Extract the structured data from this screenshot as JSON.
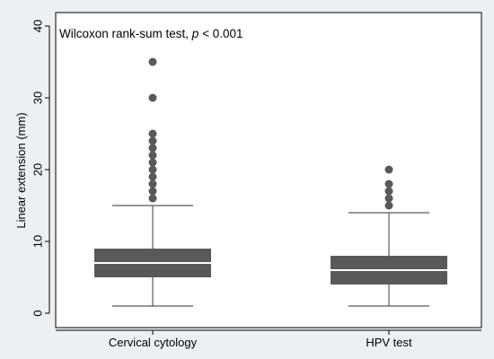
{
  "chart_data": {
    "type": "box",
    "title": "",
    "annotation": {
      "text_main": "Wilcoxon rank-sum test, ",
      "text_italic": "p",
      "text_tail": " < 0.001"
    },
    "xlabel": "",
    "ylabel": "Linear extension (mm)",
    "ylim": [
      0,
      40
    ],
    "yticks": [
      0,
      10,
      20,
      30,
      40
    ],
    "grid": false,
    "categories": [
      "Cervical cytology",
      "HPV test"
    ],
    "boxes": [
      {
        "category": "Cervical cytology",
        "whisker_low": 1,
        "q1": 5,
        "median": 7,
        "q3": 9,
        "whisker_high": 15,
        "outliers": [
          16,
          17,
          18,
          19,
          20,
          21,
          22,
          23,
          24,
          25,
          30,
          35
        ]
      },
      {
        "category": "HPV test",
        "whisker_low": 1,
        "q1": 4,
        "median": 6,
        "q3": 8,
        "whisker_high": 14,
        "outliers": [
          15,
          16,
          17,
          18,
          20
        ]
      }
    ],
    "colors": {
      "box": "#595959",
      "median": "#ffffff",
      "outlier": "#595959",
      "background": "#eaf0f3",
      "plot_bg": "#ffffff"
    }
  }
}
